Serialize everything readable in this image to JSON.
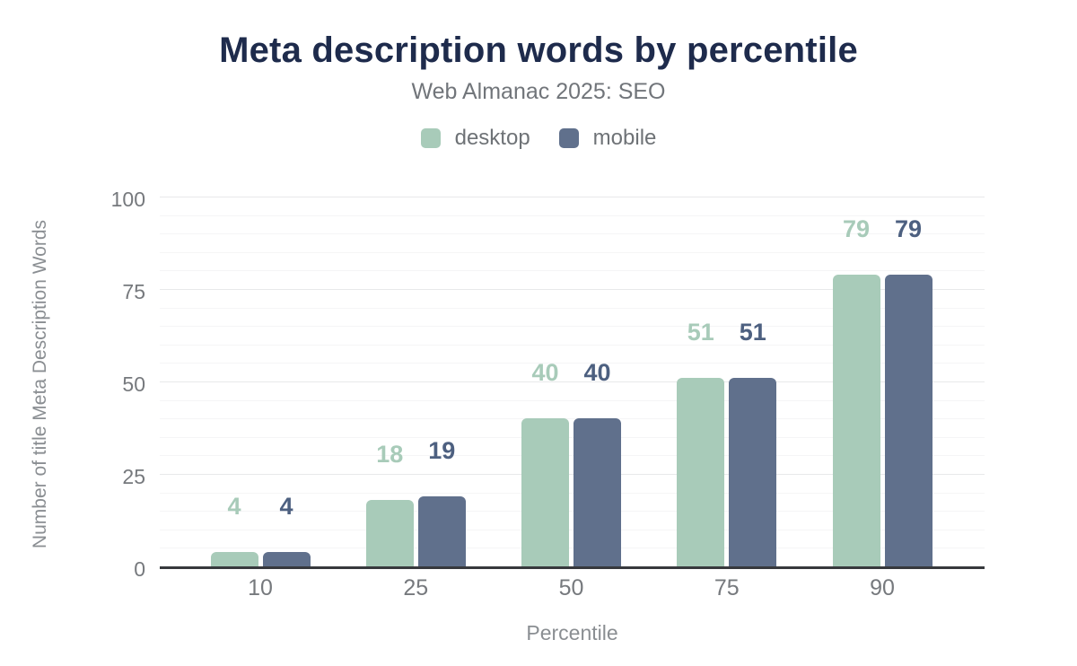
{
  "page": {
    "background": "#ffffff"
  },
  "chart_data": {
    "type": "bar",
    "title": "Meta description words by percentile",
    "subtitle": "Web Almanac 2025: SEO",
    "xlabel": "Percentile",
    "ylabel": "Number of title Meta Description Words",
    "categories": [
      "10",
      "25",
      "50",
      "75",
      "90"
    ],
    "series": [
      {
        "name": "desktop",
        "color": "#a8cbb9",
        "value_label_color": "#a8cbb9",
        "values": [
          4,
          18,
          40,
          51,
          79
        ]
      },
      {
        "name": "mobile",
        "color": "#60708c",
        "value_label_color": "#4d6080",
        "values": [
          4,
          19,
          40,
          51,
          79
        ]
      }
    ],
    "ylim": [
      0,
      100
    ],
    "yticks": [
      0,
      25,
      50,
      75,
      100
    ],
    "grid": {
      "minor_interval": 5,
      "major_interval": 25,
      "visible": true
    },
    "legend_position": "top",
    "bar_value_labels": true
  },
  "colors": {
    "title": "#1e2b4c",
    "subtitle": "#71757a",
    "legend_text": "#6e7276",
    "tick_text": "#76797d",
    "axis_title_text": "#8a8e92",
    "axis_line": "#37393d",
    "gridline_major": "#e8e9ea",
    "gridline_minor": "#f5f5f6"
  }
}
